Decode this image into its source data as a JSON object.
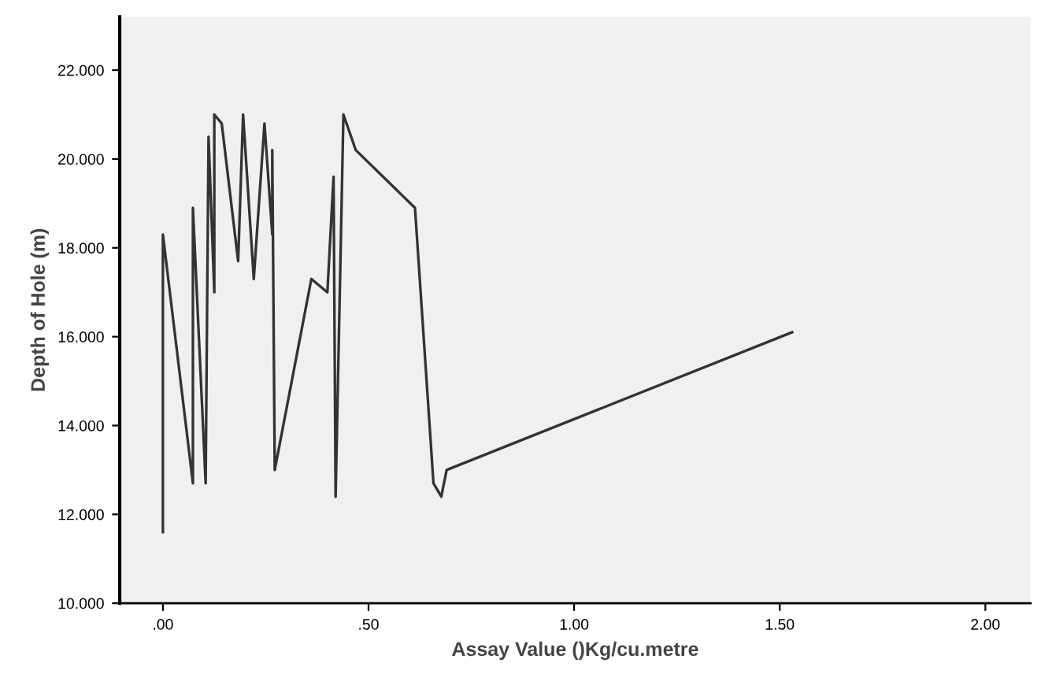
{
  "chart_data": {
    "type": "line",
    "xlabel": "Assay Value ()Kg/cu.metre",
    "ylabel": "Depth of Hole (m)",
    "x": [
      0.0,
      0.0,
      0.073,
      0.073,
      0.104,
      0.111,
      0.125,
      0.125,
      0.143,
      0.183,
      0.195,
      0.221,
      0.247,
      0.266,
      0.266,
      0.272,
      0.361,
      0.4,
      0.415,
      0.42,
      0.439,
      0.469,
      0.613,
      0.658,
      0.677,
      0.69,
      1.53
    ],
    "series": [
      {
        "color": "#333333",
        "values": [
          11.6,
          18.3,
          12.7,
          18.9,
          12.7,
          20.5,
          17.0,
          21.0,
          20.8,
          17.7,
          21.0,
          17.3,
          20.8,
          18.3,
          20.2,
          13.0,
          17.3,
          17.0,
          19.6,
          12.4,
          21.0,
          20.2,
          18.9,
          12.7,
          12.4,
          13.0,
          16.1
        ]
      }
    ],
    "xlim": [
      -0.105,
      2.11
    ],
    "xticks": [
      {
        "value": 0,
        "label": ".00"
      },
      {
        "value": 0.5,
        "label": ".50"
      },
      {
        "value": 1,
        "label": "1.00"
      },
      {
        "value": 1.5,
        "label": "1.50"
      },
      {
        "value": 2,
        "label": "2.00"
      }
    ],
    "ylim": [
      10,
      23.2
    ],
    "yticks": [
      {
        "value": 10,
        "label": "10.000"
      },
      {
        "value": 12,
        "label": "12.000"
      },
      {
        "value": 14,
        "label": "14.000"
      },
      {
        "value": 16,
        "label": "16.000"
      },
      {
        "value": 18,
        "label": "18.000"
      },
      {
        "value": 20,
        "label": "20.000"
      },
      {
        "value": 22,
        "label": "22.000"
      }
    ],
    "grid": false,
    "marker": "none",
    "line_style": "solid"
  }
}
